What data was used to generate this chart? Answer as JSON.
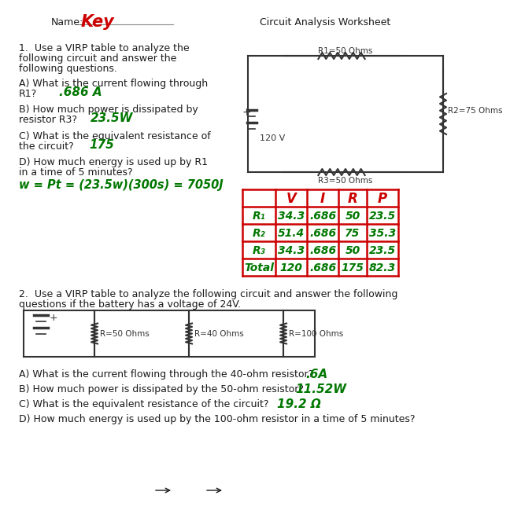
{
  "bg_color": "#ffffff",
  "text_color": "#1a1a1a",
  "answer_green": "#007700",
  "answer_red": "#cc0000",
  "circuit_color": "#333333",
  "name_text": "Name:",
  "key_text": "Key",
  "title_text": "Circuit Analysis Worksheet",
  "q1_line1": "1.  Use a VIRP table to analyze the",
  "q1_line2": "following circuit and answer the",
  "q1_line3": "following questions.",
  "q1a_line1": "A) What is the current flowing through",
  "q1a_line2": "R1?",
  "q1a_ans": ".686 A",
  "q1b_line1": "B) How much power is dissipated by",
  "q1b_line2": "resistor R3?",
  "q1b_ans": "23.5W",
  "q1c_line1": "C) What is the equivalent resistance of",
  "q1c_line2": "the circuit?",
  "q1c_ans": "175",
  "q1d_line1": "D) How much energy is used up by R1",
  "q1d_line2": "in a time of 5 minutes?",
  "q1d_ans": "w = Pt = (23.5w)(300s) = 7050J",
  "virp_headers": [
    "",
    "V",
    "I",
    "R",
    "P"
  ],
  "virp_rows": [
    [
      "R₁",
      "34.3",
      ".686",
      "50",
      "23.5"
    ],
    [
      "R₂",
      "51.4",
      ".686",
      "75",
      "35.3"
    ],
    [
      "R₃",
      "34.3",
      ".686",
      "50",
      "23.5"
    ],
    [
      "Total",
      "120",
      ".686",
      "175",
      "82.3"
    ]
  ],
  "q2_line1": "2.  Use a VIRP table to analyze the following circuit and answer the following",
  "q2_line2": "questions if the battery has a voltage of 24V.",
  "q2a_q": "A) What is the current flowing through the 40-ohm resistor?",
  "q2a_ans": ".6A",
  "q2b_q": "B) How much power is dissipated by the 50-ohm resistor?",
  "q2b_ans": "11.52W",
  "q2c_q": "C) What is the equivalent resistance of the circuit?",
  "q2c_ans": "19.2 Ω",
  "q2d_q": "D) How much energy is used up by the 100-ohm resistor in a time of 5 minutes?",
  "r1_label": "R1=50 Ohms",
  "r2_label": "R2=75 Ohms",
  "r3_label": "R3=50 Ohms",
  "v_label": "120 V",
  "r2a_label": "R=50 Ohms",
  "r2b_label": "R=40 Ohms",
  "r2c_label": "R=100 Ohms"
}
